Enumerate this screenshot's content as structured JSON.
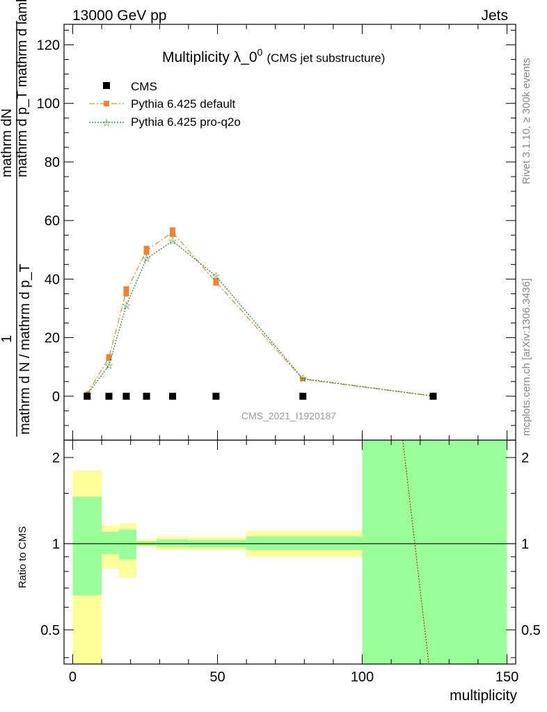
{
  "header": {
    "left": "13000 GeV pp",
    "right": "Jets"
  },
  "side": {
    "rivet": "Rivet 3.1.10, ≥ 300k events",
    "mcplots": "mcplots.cern.ch [arXiv:1306.3436]"
  },
  "main_plot": {
    "title": "Multiplicity λ_0",
    "title_sup": "0",
    "title_note": "(CMS jet substructure)",
    "analysis_id": "CMS_2021_I1920187",
    "ylabel_top": "1",
    "ylabel_num": "mathrm dN",
    "ylabel_num_den": "mathrm d p_T mathrm d lambda",
    "ylabel_den": "mathrm d N / mathrm d p_T",
    "ylabel_den_num": "mathrm d p_T mathrm d lambda"
  },
  "ratio_plot": {
    "ylabel": "Ratio to CMS",
    "xlabel": "multiplicity"
  },
  "colors": {
    "cms": "#000000",
    "default": "#f58231",
    "proq2o": "#118811",
    "band_outer": "#ffff99",
    "band_inner": "#99ff99"
  },
  "chart_data": {
    "type": "scatter",
    "title": "Multiplicity λ_0^0 (CMS jet substructure)",
    "xlabel": "multiplicity",
    "xlim": [
      -3,
      153
    ],
    "ylim": [
      -15,
      127
    ],
    "x_ticks": [
      0,
      50,
      100,
      150
    ],
    "y_ticks": [
      0,
      20,
      40,
      60,
      80,
      100,
      120
    ],
    "legend": {
      "placement": "top-left"
    },
    "series": [
      {
        "name": "CMS",
        "marker": "square",
        "x": [
          5,
          12.5,
          18.5,
          25.5,
          34.5,
          49.5,
          79.5,
          124.5
        ],
        "y": [
          0,
          0,
          0,
          0,
          0,
          0,
          0,
          0
        ]
      },
      {
        "name": "Pythia 6.425 default",
        "marker": "square-dash",
        "x": [
          5,
          12.5,
          18.5,
          25.5,
          34.5,
          49.5,
          79.5,
          124.5
        ],
        "y": [
          0.8,
          13.2,
          35.8,
          49.8,
          56.0,
          39.0,
          5.8,
          0.05
        ],
        "err": [
          0.4,
          0.9,
          1.5,
          1.3,
          1.4,
          1.0,
          0.4,
          0.05
        ]
      },
      {
        "name": "Pythia 6.425 pro-q2o",
        "marker": "star-dot",
        "x": [
          5,
          12.5,
          18.5,
          25.5,
          34.5,
          49.5,
          79.5,
          124.5
        ],
        "y": [
          0.6,
          10.5,
          31.0,
          47.0,
          53.0,
          41.0,
          6.0,
          0.05
        ]
      }
    ],
    "ratio": {
      "ylabel": "Ratio to CMS",
      "ylim": [
        0.38,
        2.3
      ],
      "scale": "log",
      "y_ticks": [
        0.5,
        1,
        2
      ],
      "bands": [
        {
          "xlo": 0,
          "xhi": 10,
          "outer": [
            0.3,
            1.8
          ],
          "inner": [
            0.66,
            1.46
          ]
        },
        {
          "xlo": 10,
          "xhi": 16,
          "outer": [
            0.82,
            1.16
          ],
          "inner": [
            0.92,
            1.1
          ]
        },
        {
          "xlo": 16,
          "xhi": 22,
          "outer": [
            0.76,
            1.18
          ],
          "inner": [
            0.88,
            1.12
          ]
        },
        {
          "xlo": 22,
          "xhi": 29,
          "outer": [
            0.975,
            1.035
          ],
          "inner": [
            0.985,
            1.02
          ]
        },
        {
          "xlo": 29,
          "xhi": 40,
          "outer": [
            0.95,
            1.06
          ],
          "inner": [
            0.975,
            1.035
          ]
        },
        {
          "xlo": 40,
          "xhi": 60,
          "outer": [
            0.95,
            1.055
          ],
          "inner": [
            0.97,
            1.03
          ]
        },
        {
          "xlo": 60,
          "xhi": 100,
          "outer": [
            0.9,
            1.11
          ],
          "inner": [
            0.95,
            1.06
          ]
        },
        {
          "xlo": 100,
          "xhi": 150,
          "outer": [
            0.3,
            3.0
          ],
          "inner": [
            0.3,
            3.0
          ]
        }
      ],
      "line": {
        "x": [
          114,
          123
        ],
        "y": [
          2.5,
          0.38
        ]
      }
    }
  }
}
